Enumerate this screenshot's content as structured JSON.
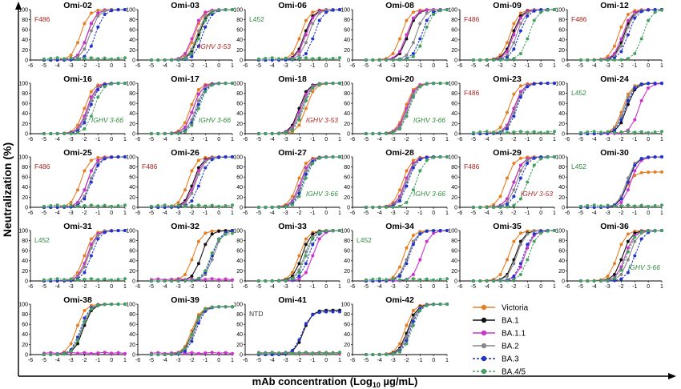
{
  "figure": {
    "ylabel": "Neutralization (%)",
    "xlabel_main": "mAb concentration (Log",
    "xlabel_sub": "10",
    "xlabel_tail": " µg/mL)"
  },
  "colors": {
    "Victoria": "#E67E22",
    "BA.1": "#111111",
    "BA.1.1": "#CC33CC",
    "BA.2": "#888888",
    "BA.3": "#2233CC",
    "BA.4/5": "#44A060",
    "F486": "#B22222",
    "L452": "#2E8B3E",
    "IGHV": "#2E8B3E",
    "IGHV353": "#B22222",
    "NTD": "#333333"
  },
  "chart_data": {
    "type": "line",
    "x_ticks": [
      "-6",
      "-5",
      "-4",
      "-3",
      "-2",
      "-1",
      "0",
      "1"
    ],
    "y_ticks": [
      "0",
      "20",
      "40",
      "60",
      "80",
      "100"
    ],
    "xlim": [
      -6,
      1
    ],
    "ylim": [
      0,
      100
    ],
    "series_names": [
      "Victoria",
      "BA.1",
      "BA.1.1",
      "BA.2",
      "BA.3",
      "BA.4/5"
    ],
    "legend": [
      {
        "name": "Victoria",
        "dashed": false
      },
      {
        "name": "BA.1",
        "dashed": false
      },
      {
        "name": "BA.1.1",
        "dashed": false
      },
      {
        "name": "BA.2",
        "dashed": false
      },
      {
        "name": "BA.3",
        "dashed": true
      },
      {
        "name": "BA.4/5",
        "dashed": true
      }
    ],
    "panels": [
      {
        "title": "Omi-02",
        "annotation": {
          "text": "F486",
          "kind": "F486",
          "pos": "tl"
        },
        "ic50": [
          -2.3,
          -1.8,
          -1.8,
          -1.6,
          -1.2,
          null
        ]
      },
      {
        "title": "Omi-03",
        "annotation": {
          "text": "IGHV 3-53",
          "kind": "IGHV353",
          "pos": "br"
        },
        "ic50": [
          -1.8,
          -1.5,
          -1.9,
          -1.6,
          -1.2,
          -1.4
        ]
      },
      {
        "title": "Omi-06",
        "annotation": {
          "text": "L452",
          "kind": "L452",
          "pos": "tl"
        },
        "ic50": [
          -1.9,
          -1.6,
          -1.5,
          -1.3,
          -0.9,
          null
        ]
      },
      {
        "title": "Omi-08",
        "annotation": null,
        "ic50": [
          -2.4,
          -1.9,
          -2.0,
          -1.3,
          -0.9,
          -0.7
        ]
      },
      {
        "title": "Omi-09",
        "annotation": {
          "text": "F486",
          "kind": "F486",
          "pos": "tl"
        },
        "ic50": [
          -2.3,
          -2.1,
          -2.0,
          -1.8,
          -1.6,
          -0.9
        ]
      },
      {
        "title": "Omi-12",
        "annotation": {
          "text": "F486",
          "kind": "F486",
          "pos": "tl"
        },
        "ic50": [
          -2.2,
          -1.8,
          -1.9,
          -1.7,
          -1.5,
          -0.4
        ]
      },
      {
        "title": "Omi-16",
        "annotation": {
          "text": "IGHV 3-66",
          "kind": "IGHV",
          "pos": "br"
        },
        "ic50": [
          -2.0,
          -1.8,
          -1.8,
          -1.7,
          -1.6,
          -1.3
        ]
      },
      {
        "title": "Omi-17",
        "annotation": {
          "text": "IGHV 3-66",
          "kind": "IGHV",
          "pos": "br"
        },
        "ic50": [
          -2.1,
          -1.9,
          -1.9,
          -1.7,
          -1.6,
          -1.5
        ]
      },
      {
        "title": "Omi-18",
        "annotation": {
          "text": "IGHV 3-53",
          "kind": "IGHV353",
          "pos": "br"
        },
        "ic50": [
          -1.5,
          -2.0,
          -1.9,
          -1.8,
          -1.7,
          -1.7
        ]
      },
      {
        "title": "Omi-20",
        "annotation": {
          "text": "IGHV 3-66",
          "kind": "IGHV",
          "pos": "br"
        },
        "ic50": [
          -2.1,
          -2.0,
          -2.0,
          -1.9,
          -1.8,
          -1.8
        ]
      },
      {
        "title": "Omi-23",
        "annotation": {
          "text": "F486",
          "kind": "F486",
          "pos": "tl"
        },
        "ic50": [
          -2.4,
          -2.0,
          -2.0,
          -1.9,
          -1.8,
          null
        ]
      },
      {
        "title": "Omi-24",
        "annotation": {
          "text": "L452",
          "kind": "L452",
          "pos": "tl"
        },
        "ic50": [
          -1.9,
          -1.6,
          -0.7,
          -1.8,
          -1.7,
          null
        ]
      },
      {
        "title": "Omi-25",
        "annotation": {
          "text": "F486",
          "kind": "F486",
          "pos": "tl"
        },
        "ic50": [
          -2.3,
          -1.8,
          -1.8,
          -1.6,
          -1.5,
          null
        ]
      },
      {
        "title": "Omi-26",
        "annotation": {
          "text": "F486",
          "kind": "F486",
          "pos": "tl"
        },
        "ic50": [
          -2.3,
          -1.9,
          -1.8,
          -1.7,
          -1.4,
          null
        ]
      },
      {
        "title": "Omi-27",
        "annotation": {
          "text": "IGHV 3-66",
          "kind": "IGHV",
          "pos": "br"
        },
        "ic50": [
          -2.1,
          -1.9,
          -1.9,
          -1.8,
          -1.7,
          -1.6
        ]
      },
      {
        "title": "Omi-28",
        "annotation": {
          "text": "IGHV 3-66",
          "kind": "IGHV",
          "pos": "br"
        },
        "ic50": [
          -2.3,
          -2.1,
          -2.1,
          -2.0,
          -1.9,
          -1.3
        ]
      },
      {
        "title": "Omi-29",
        "annotation": {
          "text": "F486",
          "kind": "F486",
          "pos": "tl"
        },
        "annotation2": {
          "text": "IGHV 3-53",
          "kind": "IGHV353",
          "pos": "br"
        },
        "ic50": [
          -2.6,
          -2.0,
          -2.0,
          -1.8,
          -1.6,
          -1.0
        ]
      },
      {
        "title": "Omi-30",
        "annotation": {
          "text": "L452",
          "kind": "L452",
          "pos": "tl"
        },
        "ic50": [
          -1.7,
          -1.5,
          -1.3,
          -1.6,
          -1.5,
          null
        ],
        "top": [
          70,
          100,
          100,
          100,
          100,
          0
        ]
      },
      {
        "title": "Omi-31",
        "annotation": {
          "text": "L452",
          "kind": "L452",
          "pos": "tl"
        },
        "ic50": [
          -2.0,
          -1.8,
          -1.8,
          -1.7,
          -1.5,
          null
        ]
      },
      {
        "title": "Omi-32",
        "annotation": null,
        "ic50": [
          -1.9,
          -1.3,
          null,
          -0.4,
          -0.5,
          -0.6
        ],
        "top": [
          100,
          100,
          40,
          100,
          100,
          95
        ]
      },
      {
        "title": "Omi-33",
        "annotation": null,
        "ic50": [
          -2.0,
          -1.8,
          -1.0,
          -1.6,
          -1.3,
          -1.5
        ]
      },
      {
        "title": "Omi-34",
        "annotation": {
          "text": "L452",
          "kind": "L452",
          "pos": "tl"
        },
        "ic50": [
          -2.2,
          -1.9,
          -0.9,
          -1.9,
          -1.8,
          null
        ]
      },
      {
        "title": "Omi-35",
        "annotation": null,
        "ic50": [
          -2.4,
          -1.9,
          -1.2,
          -1.8,
          -1.3,
          -0.9
        ]
      },
      {
        "title": "Omi-36",
        "annotation": {
          "text": "IGHV 3-66",
          "kind": "IGHV",
          "pos": "br"
        },
        "ic50": [
          -2.3,
          -1.9,
          -1.7,
          -1.4,
          -1.0,
          -1.6
        ]
      },
      {
        "title": "Omi-38",
        "annotation": null,
        "ic50": [
          -2.6,
          -2.1,
          null,
          -2.2,
          -2.3,
          -2.2
        ]
      },
      {
        "title": "Omi-39",
        "annotation": null,
        "ic50": [
          -2.0,
          -1.9,
          null,
          -1.8,
          -1.7,
          -1.9
        ],
        "top": [
          95,
          95,
          0,
          95,
          95,
          95
        ]
      },
      {
        "title": "Omi-41",
        "annotation": {
          "text": "NTD",
          "kind": "NTD",
          "pos": "tl"
        },
        "ic50": [
          null,
          -1.7,
          null,
          null,
          -1.8,
          null
        ],
        "top": [
          0,
          88,
          0,
          0,
          85,
          0
        ]
      },
      {
        "title": "Omi-42",
        "annotation": null,
        "ic50": [
          -2.1,
          -1.9,
          -1.8,
          -1.8,
          -1.7,
          -1.6
        ]
      }
    ]
  }
}
